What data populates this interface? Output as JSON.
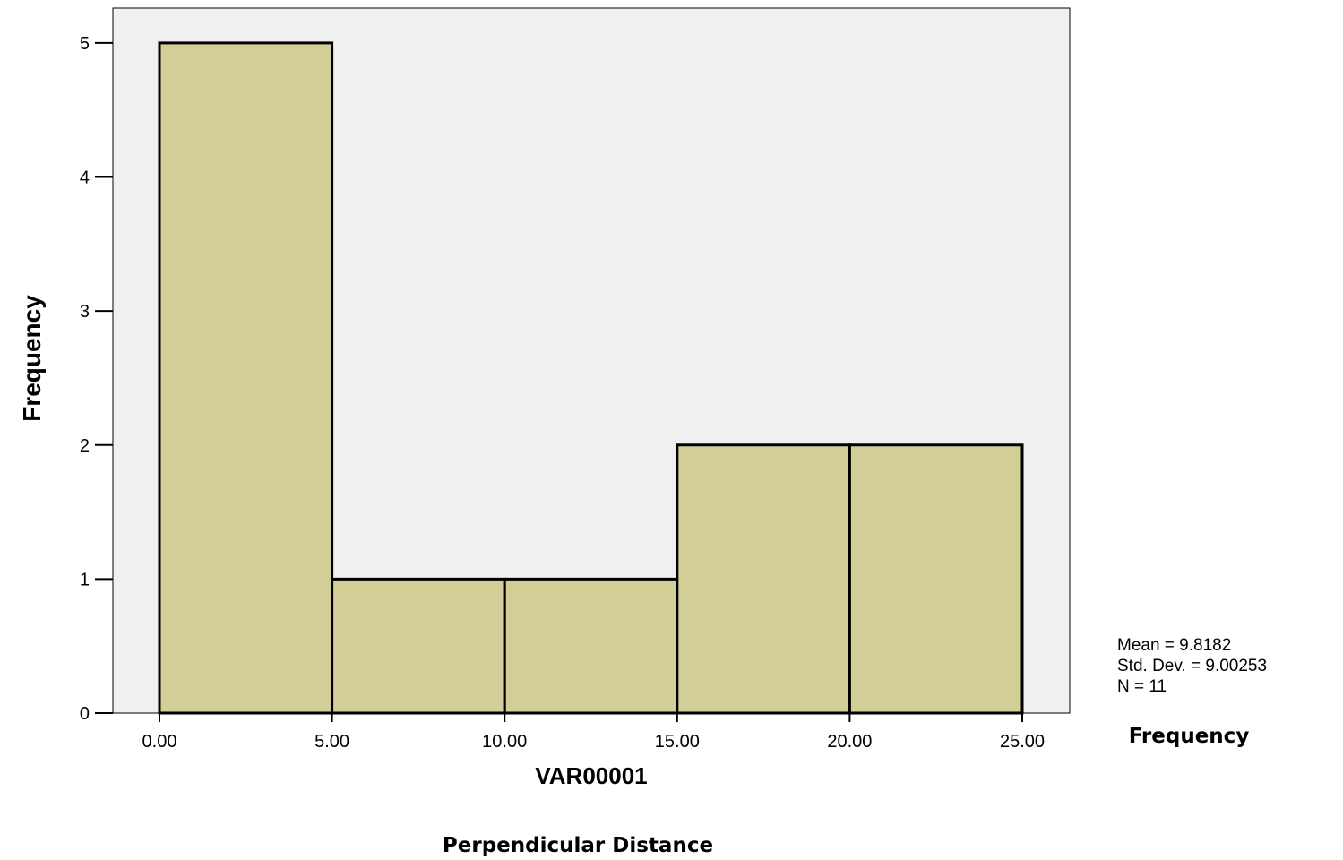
{
  "chart_data": {
    "type": "bar",
    "subtype": "histogram",
    "bins": [
      {
        "start": 0,
        "end": 5,
        "count": 5
      },
      {
        "start": 5,
        "end": 10,
        "count": 1
      },
      {
        "start": 10,
        "end": 15,
        "count": 1
      },
      {
        "start": 15,
        "end": 20,
        "count": 2
      },
      {
        "start": 20,
        "end": 25,
        "count": 2
      }
    ],
    "xlabel": "VAR00001",
    "ylabel": "Frequency",
    "x_ticks": [
      "0.00",
      "5.00",
      "10.00",
      "15.00",
      "20.00",
      "25.00"
    ],
    "y_ticks": [
      "0",
      "1",
      "2",
      "3",
      "4",
      "5"
    ],
    "ylim": [
      0,
      5.26
    ],
    "grid": false,
    "stats": {
      "mean": "Mean = 9.8182",
      "std_dev": "Std. Dev. = 9.00253",
      "n": "N = 11"
    },
    "bar_color": "#d3ce98",
    "plot_background": "#f0f0f0"
  },
  "captions": {
    "right_label": "Frequency",
    "bottom_label": "Perpendicular Distance"
  }
}
